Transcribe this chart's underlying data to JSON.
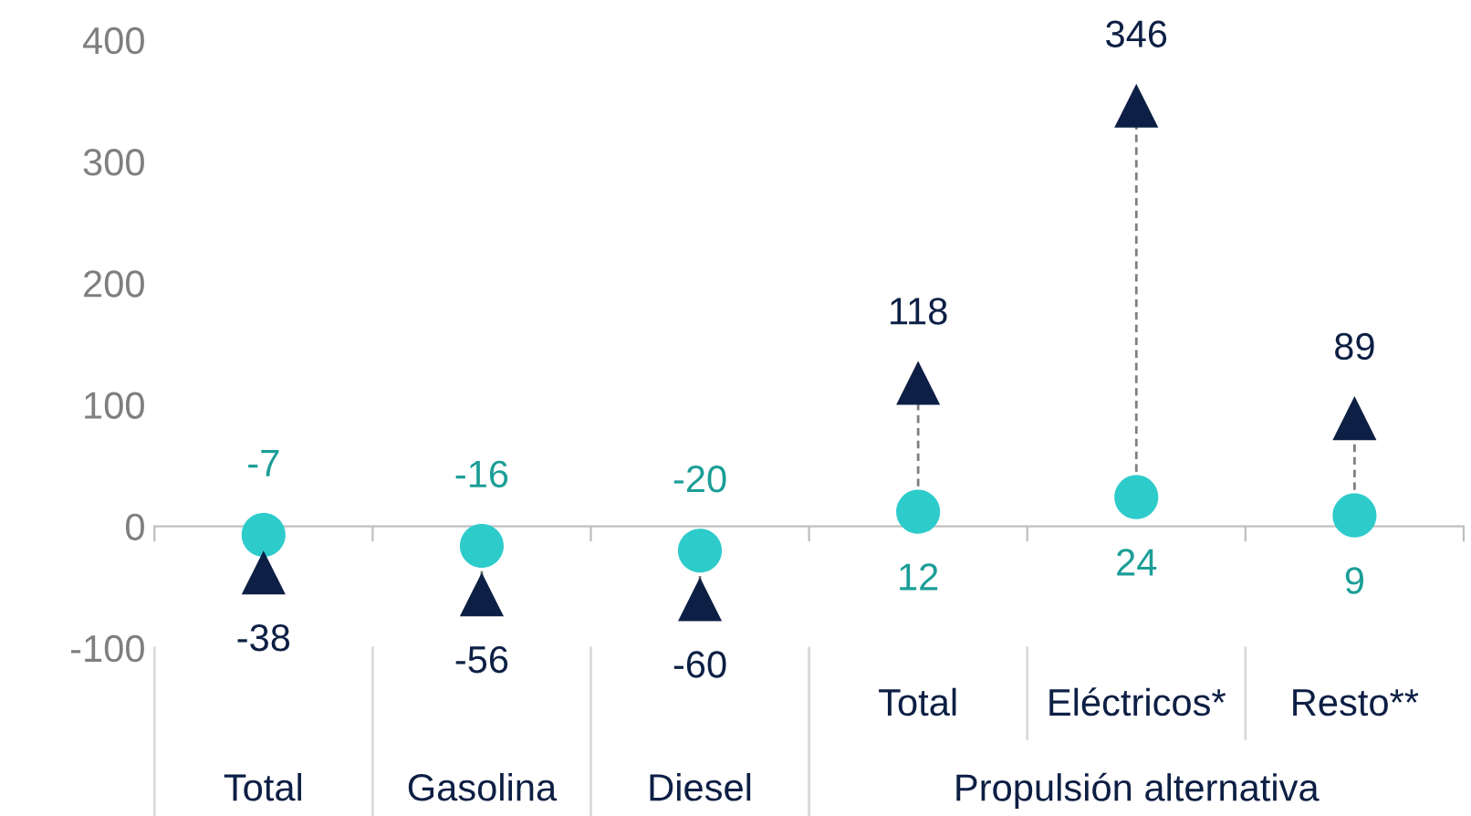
{
  "chart_data": {
    "type": "scatter",
    "categories": [
      "Total",
      "Gasolina",
      "Diesel",
      "Total",
      "Eléctricos*",
      "Resto**"
    ],
    "series": [
      {
        "color": "#2ecbcb",
        "marker": "circle",
        "values": [
          -7,
          -16,
          -20,
          12,
          24,
          9
        ]
      },
      {
        "color": "#0d1f44",
        "marker": "triangle",
        "values": [
          -38,
          -56,
          -60,
          118,
          346,
          89
        ]
      }
    ],
    "annotations": [
      {
        "text": "Propulsión alternativa"
      }
    ],
    "ylim": [
      -100,
      400
    ],
    "yticks": [
      -100,
      0,
      100,
      200,
      300,
      400
    ],
    "data_labels": true,
    "tick_labels": "y"
  }
}
